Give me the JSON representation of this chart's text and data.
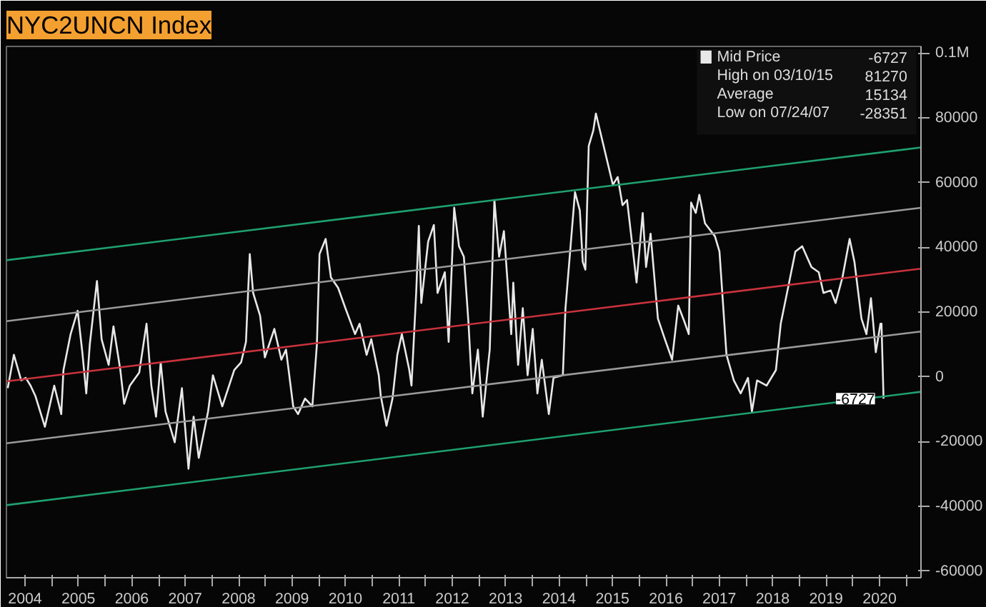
{
  "chart_data": {
    "type": "line",
    "title": "NYC2UNCN Index",
    "xlim": [
      "2004-02-25",
      "2021-04-10"
    ],
    "ylim": [
      -62000,
      102000
    ],
    "xticks": [
      {
        "value": "2004-07-01",
        "label": "2004"
      },
      {
        "value": "2005-01-01",
        "label": null
      },
      {
        "value": "2005-07-01",
        "label": "2005"
      },
      {
        "value": "2006-01-01",
        "label": null
      },
      {
        "value": "2006-07-01",
        "label": "2006"
      },
      {
        "value": "2007-01-01",
        "label": null
      },
      {
        "value": "2007-07-01",
        "label": "2007"
      },
      {
        "value": "2008-01-01",
        "label": null
      },
      {
        "value": "2008-07-01",
        "label": "2008"
      },
      {
        "value": "2009-01-01",
        "label": null
      },
      {
        "value": "2009-07-01",
        "label": "2009"
      },
      {
        "value": "2010-01-01",
        "label": null
      },
      {
        "value": "2010-07-01",
        "label": "2010"
      },
      {
        "value": "2011-01-01",
        "label": null
      },
      {
        "value": "2011-07-01",
        "label": "2011"
      },
      {
        "value": "2012-01-01",
        "label": null
      },
      {
        "value": "2012-07-01",
        "label": "2012"
      },
      {
        "value": "2013-01-01",
        "label": null
      },
      {
        "value": "2013-07-01",
        "label": "2013"
      },
      {
        "value": "2014-01-01",
        "label": null
      },
      {
        "value": "2014-07-01",
        "label": "2014"
      },
      {
        "value": "2015-01-01",
        "label": null
      },
      {
        "value": "2015-07-01",
        "label": "2015"
      },
      {
        "value": "2016-01-01",
        "label": null
      },
      {
        "value": "2016-07-01",
        "label": "2016"
      },
      {
        "value": "2017-01-01",
        "label": null
      },
      {
        "value": "2017-07-01",
        "label": "2017"
      },
      {
        "value": "2018-01-01",
        "label": null
      },
      {
        "value": "2018-07-01",
        "label": "2018"
      },
      {
        "value": "2019-01-01",
        "label": null
      },
      {
        "value": "2019-07-01",
        "label": "2019"
      },
      {
        "value": "2020-01-01",
        "label": null
      },
      {
        "value": "2020-07-01",
        "label": "2020"
      },
      {
        "value": "2021-01-01",
        "label": null
      }
    ],
    "yticks": [
      {
        "value": 100000,
        "label": "0.1M"
      },
      80000,
      60000,
      40000,
      20000,
      0,
      -20000,
      -40000,
      -60000
    ],
    "grid": false,
    "legend": "top right",
    "annotations": [
      "-6727",
      "High on 03/10/15  81270",
      "Average  15134",
      "Low on 07/24/07  -28351",
      {
        "text": "-6727",
        "x": "2020-07-28",
        "y": -6727
      }
    ],
    "series": [
      {
        "name": "Mid Price",
        "color": "#e8e8e8",
        "x": [
          "2004-03-05",
          "2004-04-16",
          "2004-06-05",
          "2004-07-06",
          "2004-08-08",
          "2004-09-10",
          "2004-11-14",
          "2005-01-17",
          "2005-03-06",
          "2005-03-21",
          "2005-05-09",
          "2005-06-26",
          "2005-07-28",
          "2005-08-24",
          "2005-09-17",
          "2005-11-05",
          "2005-12-07",
          "2006-01-24",
          "2006-02-26",
          "2006-04-14",
          "2006-05-10",
          "2006-06-18",
          "2006-08-21",
          "2006-10-10",
          "2006-11-12",
          "2006-12-14",
          "2007-01-15",
          "2007-02-17",
          "2007-04-21",
          "2007-06-09",
          "2007-07-24",
          "2007-08-28",
          "2007-10-02",
          "2007-12-05",
          "2008-01-07",
          "2008-03-11",
          "2008-06-01",
          "2008-07-18",
          "2008-08-20",
          "2008-09-15",
          "2008-10-08",
          "2008-11-25",
          "2008-12-27",
          "2009-03-02",
          "2009-04-19",
          "2009-05-21",
          "2009-07-09",
          "2009-08-11",
          "2009-09-28",
          "2009-11-17",
          "2009-12-18",
          "2010-01-05",
          "2010-02-16",
          "2010-03-24",
          "2010-05-12",
          "2010-07-01",
          "2010-09-05",
          "2010-10-06",
          "2010-11-23",
          "2010-12-25",
          "2011-02-14",
          "2011-02-28",
          "2011-04-08",
          "2011-05-19",
          "2011-06-21",
          "2011-07-22",
          "2011-09-11",
          "2011-09-26",
          "2011-10-28",
          "2011-11-15",
          "2011-12-02",
          "2012-01-18",
          "2012-02-26",
          "2012-03-22",
          "2012-05-11",
          "2012-06-06",
          "2012-07-14",
          "2012-08-16",
          "2012-09-18",
          "2012-10-20",
          "2012-11-15",
          "2012-12-23",
          "2013-01-25",
          "2013-03-14",
          "2013-04-15",
          "2013-05-17",
          "2013-06-19",
          "2013-08-08",
          "2013-08-22",
          "2013-09-24",
          "2013-10-26",
          "2013-11-28",
          "2014-01-02",
          "2014-02-03",
          "2014-03-05",
          "2014-04-22",
          "2014-05-24",
          "2014-07-27",
          "2014-08-14",
          "2014-10-18",
          "2014-11-20",
          "2014-12-10",
          "2014-12-28",
          "2015-01-20",
          "2015-02-20",
          "2015-03-10",
          "2015-07-04",
          "2015-08-06",
          "2015-09-08",
          "2015-10-09",
          "2015-11-11",
          "2015-12-13",
          "2016-01-24",
          "2016-02-16",
          "2016-03-18",
          "2016-05-07",
          "2016-06-24",
          "2016-08-12",
          "2016-09-23",
          "2016-11-03",
          "2016-12-04",
          "2016-12-20",
          "2017-01-21",
          "2017-02-14",
          "2017-03-25",
          "2017-06-01",
          "2017-07-02",
          "2017-08-19",
          "2017-10-08",
          "2017-11-24",
          "2018-01-13",
          "2018-02-09",
          "2018-03-16",
          "2018-05-20",
          "2018-07-23",
          "2018-08-25",
          "2018-10-14",
          "2018-12-03",
          "2019-01-19",
          "2019-03-23",
          "2019-05-12",
          "2019-06-13",
          "2019-08-02",
          "2019-09-04",
          "2019-10-21",
          "2019-12-09",
          "2020-01-11",
          "2020-02-28",
          "2020-04-02",
          "2020-05-03",
          "2020-06-05",
          "2020-07-07",
          "2020-07-14",
          "2020-07-28"
        ],
        "values": [
          -3500,
          6800,
          -1100,
          -300,
          -2700,
          -5900,
          -15400,
          -2700,
          -11500,
          2100,
          13200,
          20400,
          7600,
          -5100,
          10000,
          29600,
          11600,
          3700,
          15600,
          2100,
          -8300,
          -2700,
          1300,
          16400,
          -2700,
          -12300,
          4500,
          -10700,
          -20200,
          -3500,
          -28351,
          -12300,
          -25000,
          -10700,
          500,
          -9100,
          2100,
          4500,
          10800,
          37900,
          25900,
          18800,
          6000,
          14800,
          5300,
          8400,
          -9100,
          -11500,
          -6700,
          -9100,
          10000,
          37900,
          42600,
          30700,
          27500,
          21200,
          13200,
          16400,
          6800,
          11600,
          500,
          -5900,
          -15100,
          -6700,
          6800,
          13200,
          2100,
          -2700,
          25900,
          46600,
          22800,
          41800,
          46900,
          25900,
          32300,
          10800,
          52200,
          40300,
          37100,
          16400,
          -5100,
          8400,
          -12300,
          8400,
          54600,
          37100,
          45000,
          13200,
          29100,
          3700,
          21200,
          500,
          14800,
          -5100,
          5300,
          -11500,
          -300,
          500,
          21200,
          57000,
          51400,
          35500,
          33100,
          71300,
          76000,
          81270,
          59300,
          61700,
          53000,
          54600,
          41800,
          29100,
          50600,
          33900,
          44200,
          18000,
          11600,
          5300,
          22000,
          17200,
          13200,
          53800,
          50600,
          56200,
          47400,
          43400,
          38700,
          6800,
          -1100,
          -5100,
          -300,
          -10700,
          -1100,
          -2700,
          2100,
          16400,
          27500,
          38700,
          40300,
          33900,
          32300,
          25900,
          26700,
          22800,
          30700,
          42600,
          35500,
          18000,
          13200,
          24300,
          7600,
          16400,
          16400,
          -6727
        ]
      },
      {
        "color": "#c8323c",
        "x": [
          "2004-02-25",
          "2021-04-10"
        ],
        "values": [
          -1400,
          33400
        ]
      },
      {
        "color": "#9a9a9a",
        "x": [
          "2004-02-25",
          "2021-04-10"
        ],
        "values": [
          17200,
          52200
        ]
      },
      {
        "color": "#9a9a9a",
        "x": [
          "2004-02-25",
          "2021-04-10"
        ],
        "values": [
          -20500,
          14000
        ]
      },
      {
        "color": "#1fa070",
        "x": [
          "2004-02-25",
          "2021-04-10"
        ],
        "values": [
          36000,
          70800
        ]
      },
      {
        "color": "#1fa070",
        "x": [
          "2004-02-25",
          "2021-04-10"
        ],
        "values": [
          -39600,
          -4600
        ]
      }
    ]
  }
}
